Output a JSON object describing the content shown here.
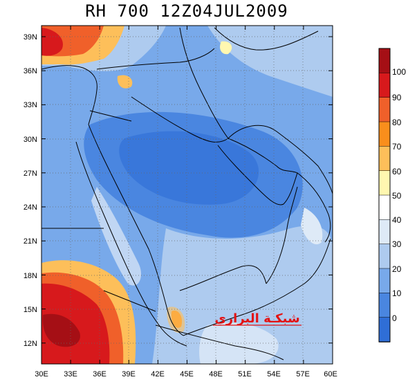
{
  "title": "RH 700  12Z04JUL2009",
  "watermark": "شبكـة البراري",
  "lon_labels": [
    "30E",
    "33E",
    "36E",
    "39E",
    "42E",
    "45E",
    "48E",
    "51E",
    "54E",
    "57E",
    "60E"
  ],
  "lat_labels": [
    "39N",
    "36N",
    "33N",
    "30N",
    "27N",
    "24N",
    "21N",
    "18N",
    "15N",
    "12N"
  ],
  "colorbar": {
    "labels": [
      "100",
      "90",
      "80",
      "70",
      "60",
      "50",
      "40",
      "30",
      "20",
      "10",
      "0"
    ],
    "colors": [
      "#a50f15",
      "#d7191c",
      "#f0602a",
      "#f98e1c",
      "#fdbf5a",
      "#fff7b0",
      "#ffffff",
      "#deeaf7",
      "#aecbef",
      "#78a9ea",
      "#4a86e0",
      "#2f6ed6"
    ]
  },
  "map_colors": {
    "ocean": "#78a9ea",
    "land": "#9cc0ee",
    "dry": "#4a86e0",
    "very_dry": "#2f6ed6",
    "moist": "#deeaf7",
    "wet_yellow": "#fff7b0",
    "wet_orange": "#fdbf5a",
    "hot_orange": "#f98e1c",
    "red": "#d7191c",
    "dark_red": "#a50f15",
    "border": "#000000",
    "grid": "#666666"
  }
}
